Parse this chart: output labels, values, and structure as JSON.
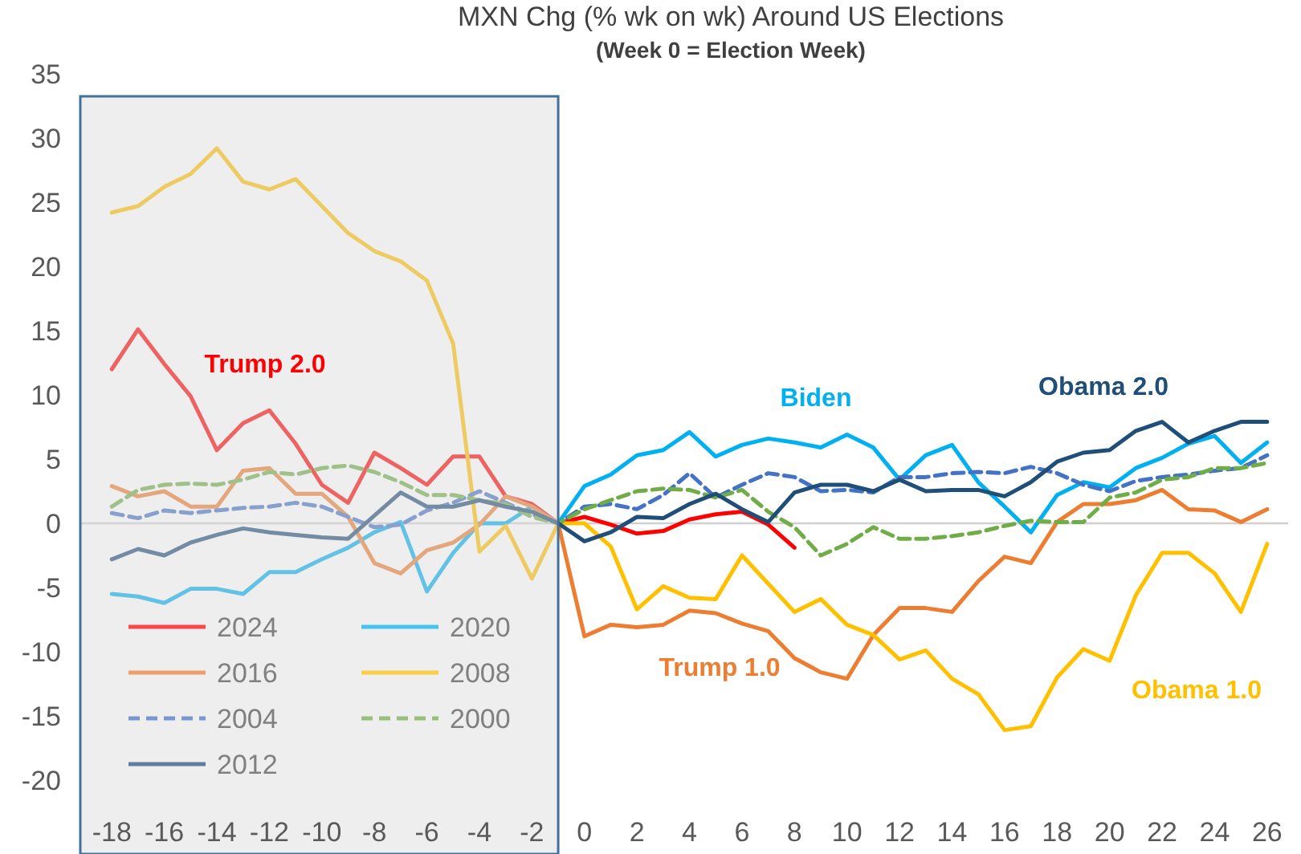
{
  "chart_data": {
    "type": "line",
    "title": "MXN Chg (% wk on wk) Around US Elections",
    "subtitle": "(Week 0 = Election Week)",
    "x": [
      -18,
      -17,
      -16,
      -15,
      -14,
      -13,
      -12,
      -11,
      -10,
      -9,
      -8,
      -7,
      -6,
      -5,
      -4,
      -3,
      -2,
      -1,
      0,
      1,
      2,
      3,
      4,
      5,
      6,
      7,
      8,
      9,
      10,
      11,
      12,
      13,
      14,
      15,
      16,
      17,
      18,
      19,
      20,
      21,
      22,
      23,
      24,
      25,
      26
    ],
    "xlim": [
      -19.2,
      26.8
    ],
    "xticks": [
      -18,
      -16,
      -14,
      -12,
      -10,
      -8,
      -6,
      -4,
      -2,
      0,
      2,
      4,
      6,
      8,
      10,
      12,
      14,
      16,
      18,
      20,
      22,
      24,
      26
    ],
    "ylim": [
      -20,
      35
    ],
    "yticks": [
      -20,
      -15,
      -10,
      -5,
      0,
      5,
      10,
      15,
      20,
      25,
      30,
      35
    ],
    "grid": false,
    "legend": "bottom left",
    "line_style": "solid",
    "series": [
      {
        "name": "2024",
        "color": "#ff0000",
        "values": [
          12.0,
          15.1,
          12.4,
          9.9,
          5.7,
          7.8,
          8.8,
          6.2,
          3.0,
          1.6,
          5.5,
          4.3,
          3.0,
          5.2,
          5.2,
          2.1,
          1.5,
          0,
          0.5,
          -0.1,
          -0.8,
          -0.6,
          0.3,
          0.7,
          0.9,
          -0.1,
          -1.9,
          null,
          null,
          null,
          null,
          null,
          null,
          null,
          null,
          null,
          null,
          null,
          null,
          null,
          null,
          null,
          null,
          null,
          null
        ]
      },
      {
        "name": "2020",
        "color": "#00b0f0",
        "values": [
          -5.5,
          -5.7,
          -6.2,
          -5.1,
          -5.1,
          -5.5,
          -3.8,
          -3.8,
          -2.8,
          -1.9,
          -0.7,
          0.1,
          -5.3,
          -2.3,
          0.0,
          0.0,
          1.3,
          0,
          2.9,
          3.8,
          5.3,
          5.7,
          7.1,
          5.2,
          6.1,
          6.6,
          6.3,
          5.9,
          6.9,
          5.9,
          3.4,
          5.3,
          6.1,
          3.2,
          1.3,
          -0.7,
          2.2,
          3.2,
          2.8,
          4.3,
          5.1,
          6.2,
          6.8,
          4.7,
          6.3
        ]
      },
      {
        "name": "2016",
        "color": "#ed7d31",
        "values": [
          2.9,
          2.1,
          2.5,
          1.3,
          1.3,
          4.1,
          4.3,
          2.3,
          2.3,
          0.5,
          -3.1,
          -3.9,
          -2.1,
          -1.5,
          -0.1,
          2.1,
          1.3,
          0,
          -8.8,
          -7.9,
          -8.1,
          -7.9,
          -6.8,
          -7.0,
          -7.8,
          -8.4,
          -10.5,
          -11.6,
          -12.1,
          -8.7,
          -6.6,
          -6.6,
          -6.9,
          -4.5,
          -2.6,
          -3.1,
          0.1,
          1.5,
          1.5,
          1.8,
          2.6,
          1.1,
          1.0,
          0.1,
          1.1
        ]
      },
      {
        "name": "2008",
        "color": "#ffc000",
        "values": [
          24.2,
          24.7,
          26.2,
          27.2,
          29.2,
          26.6,
          26.0,
          26.8,
          24.7,
          22.6,
          21.2,
          20.4,
          18.9,
          14.0,
          -2.2,
          -0.2,
          -4.3,
          0,
          0,
          -1.8,
          -6.7,
          -4.9,
          -5.8,
          -5.9,
          -2.5,
          -4.7,
          -6.9,
          -5.9,
          -7.9,
          -8.7,
          -10.6,
          -9.9,
          -12.1,
          -13.3,
          -16.1,
          -15.8,
          -12.0,
          -9.8,
          -10.7,
          -5.6,
          -2.3,
          -2.3,
          -3.9,
          -6.9,
          -1.6
        ]
      },
      {
        "name": "2004",
        "color": "#4472c4",
        "line_style": "dashed",
        "values": [
          0.8,
          0.4,
          1.0,
          0.8,
          1.0,
          1.2,
          1.3,
          1.6,
          1.3,
          0.5,
          -0.3,
          -0.1,
          1.0,
          1.6,
          2.5,
          1.6,
          0.7,
          0,
          1.3,
          1.5,
          1.1,
          2.2,
          3.9,
          2.0,
          3.0,
          3.9,
          3.6,
          2.5,
          2.6,
          2.4,
          3.6,
          3.6,
          3.9,
          4.0,
          3.9,
          4.4,
          3.9,
          3.0,
          2.5,
          3.3,
          3.6,
          3.8,
          4.1,
          4.3,
          5.3
        ]
      },
      {
        "name": "2000",
        "color": "#70ad47",
        "line_style": "dashed",
        "values": [
          1.3,
          2.6,
          3.0,
          3.1,
          3.0,
          3.4,
          4.0,
          3.8,
          4.3,
          4.5,
          4.0,
          3.2,
          2.2,
          2.2,
          1.8,
          1.5,
          0.5,
          0,
          1.1,
          1.8,
          2.5,
          2.7,
          2.6,
          2.0,
          2.6,
          0.9,
          -0.3,
          -2.5,
          -1.6,
          -0.3,
          -1.2,
          -1.2,
          -1.0,
          -0.7,
          -0.2,
          0.2,
          0.1,
          0.1,
          2.0,
          2.4,
          3.4,
          3.6,
          4.3,
          4.3,
          4.7
        ]
      },
      {
        "name": "2012",
        "color": "#1f4e79",
        "values": [
          -2.8,
          -2.0,
          -2.5,
          -1.5,
          -0.9,
          -0.4,
          -0.7,
          -0.9,
          -1.1,
          -1.2,
          0.6,
          2.4,
          1.3,
          1.3,
          1.8,
          1.3,
          0.9,
          0,
          -1.4,
          -0.7,
          0.5,
          0.4,
          1.5,
          2.3,
          1.1,
          0.1,
          2.4,
          3.0,
          3.0,
          2.5,
          3.4,
          2.5,
          2.6,
          2.6,
          2.1,
          3.2,
          4.8,
          5.5,
          5.7,
          7.2,
          7.9,
          6.3,
          7.2,
          7.9,
          7.9
        ]
      }
    ],
    "bands": [
      {
        "axis": "x",
        "from": -19.2,
        "to": -1,
        "color": "#d9d9d9"
      }
    ],
    "ref_lines": [
      {
        "axis": "y",
        "value": 0,
        "color": "#d0d0d0"
      }
    ],
    "annotations": [
      "Trump 2.0",
      "Biden",
      "Obama 2.0",
      "Trump 1.0",
      "Obama 1.0"
    ]
  }
}
